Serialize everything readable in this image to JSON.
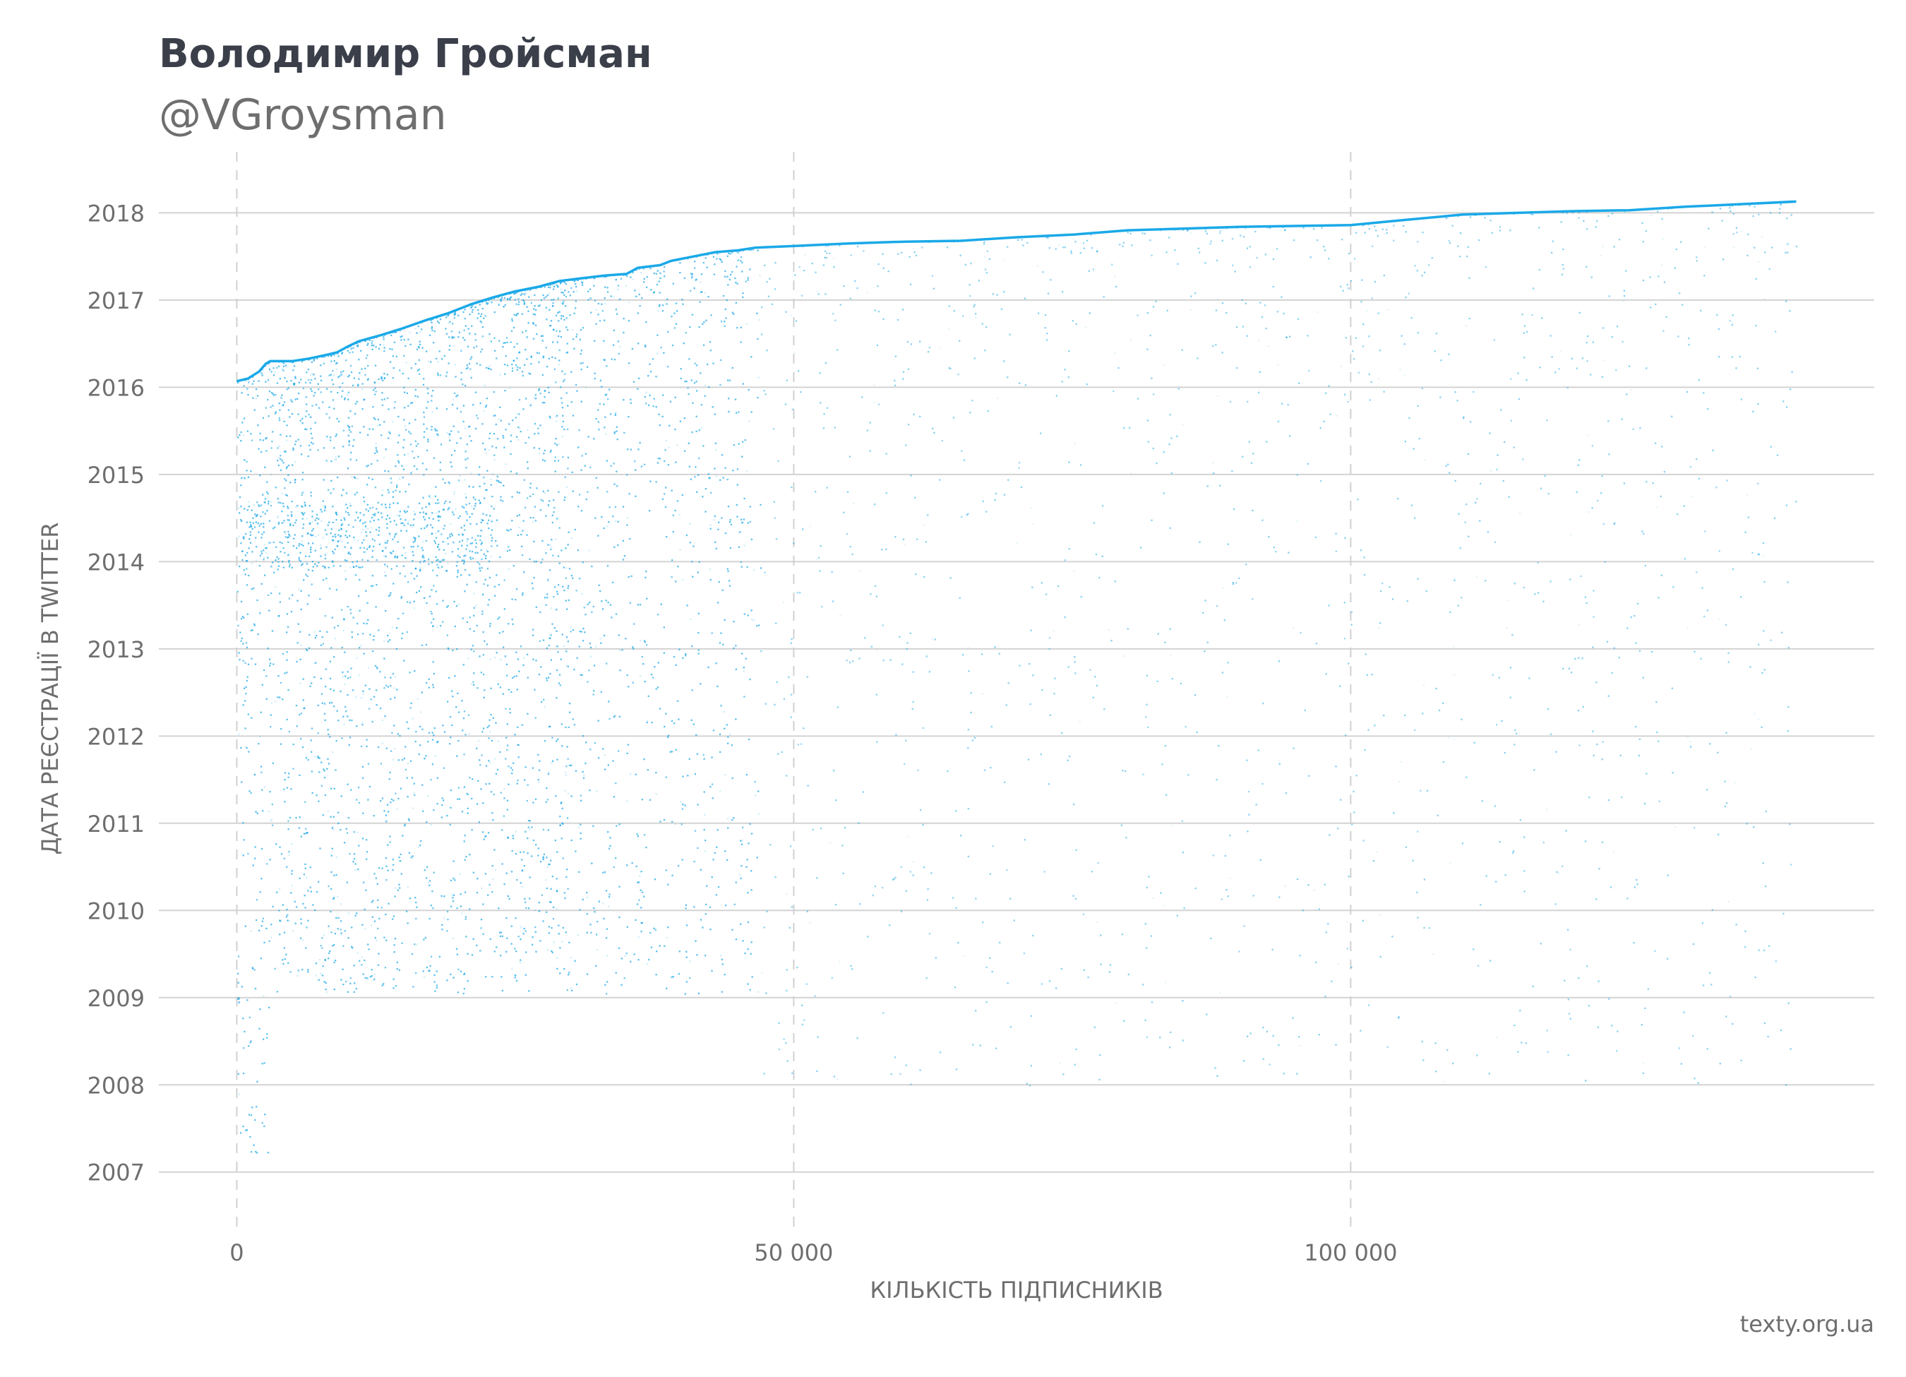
{
  "header": {
    "title": "Володимир Гройсман",
    "subtitle": "@VGroysman"
  },
  "source": "texty.org.ua",
  "colors": {
    "accent": "#1aa9e8",
    "grid": "#d3d3d3",
    "text": "#6e6e6e",
    "title": "#3a3f4a"
  },
  "chart_data": {
    "type": "scatter",
    "title": "Володимир Гройсман",
    "subtitle": "@VGroysman",
    "xlabel": "КІЛЬКІСТЬ ПІДПИСНИКІВ",
    "ylabel": "ДАТА РЕЄСТРАЦІЇ В TWITTER",
    "xlim": [
      -7000,
      147000
    ],
    "ylim": [
      2006.35,
      2018.7
    ],
    "x_ticks": [
      {
        "value": 0,
        "label": "0"
      },
      {
        "value": 50000,
        "label": "50 000"
      },
      {
        "value": 100000,
        "label": "100 000"
      }
    ],
    "y_ticks": [
      {
        "value": 2007,
        "label": "2007"
      },
      {
        "value": 2008,
        "label": "2008"
      },
      {
        "value": 2009,
        "label": "2009"
      },
      {
        "value": 2010,
        "label": "2010"
      },
      {
        "value": 2011,
        "label": "2011"
      },
      {
        "value": 2012,
        "label": "2012"
      },
      {
        "value": 2013,
        "label": "2013"
      },
      {
        "value": 2014,
        "label": "2014"
      },
      {
        "value": 2015,
        "label": "2015"
      },
      {
        "value": 2016,
        "label": "2016"
      },
      {
        "value": 2017,
        "label": "2017"
      },
      {
        "value": 2018,
        "label": "2018"
      }
    ],
    "grid": {
      "horizontal": "solid",
      "vertical": "dashed"
    },
    "series": [
      {
        "kind": "frontier-line",
        "points": [
          [
            0,
            2016.07
          ],
          [
            1000,
            2016.1
          ],
          [
            2000,
            2016.18
          ],
          [
            2600,
            2016.27
          ],
          [
            3000,
            2016.3
          ],
          [
            5000,
            2016.3
          ],
          [
            6500,
            2016.33
          ],
          [
            8000,
            2016.37
          ],
          [
            9000,
            2016.4
          ],
          [
            10000,
            2016.47
          ],
          [
            11000,
            2016.53
          ],
          [
            13000,
            2016.6
          ],
          [
            15000,
            2016.68
          ],
          [
            17000,
            2016.77
          ],
          [
            19000,
            2016.85
          ],
          [
            21000,
            2016.95
          ],
          [
            23000,
            2017.03
          ],
          [
            25000,
            2017.1
          ],
          [
            27000,
            2017.15
          ],
          [
            29000,
            2017.22
          ],
          [
            31000,
            2017.25
          ],
          [
            33000,
            2017.28
          ],
          [
            35000,
            2017.3
          ],
          [
            36000,
            2017.37
          ],
          [
            38000,
            2017.4
          ],
          [
            39000,
            2017.45
          ],
          [
            41000,
            2017.5
          ],
          [
            43000,
            2017.55
          ],
          [
            45000,
            2017.57
          ],
          [
            46500,
            2017.6
          ],
          [
            50000,
            2017.62
          ],
          [
            55000,
            2017.65
          ],
          [
            60000,
            2017.67
          ],
          [
            65000,
            2017.68
          ],
          [
            70000,
            2017.72
          ],
          [
            75000,
            2017.75
          ],
          [
            80000,
            2017.8
          ],
          [
            85000,
            2017.82
          ],
          [
            90000,
            2017.84
          ],
          [
            95000,
            2017.85
          ],
          [
            100000,
            2017.86
          ],
          [
            105000,
            2017.92
          ],
          [
            110000,
            2017.98
          ],
          [
            115000,
            2018.0
          ],
          [
            120000,
            2018.02
          ],
          [
            125000,
            2018.03
          ],
          [
            130000,
            2018.07
          ],
          [
            135000,
            2018.1
          ],
          [
            140000,
            2018.13
          ]
        ]
      }
    ]
  }
}
